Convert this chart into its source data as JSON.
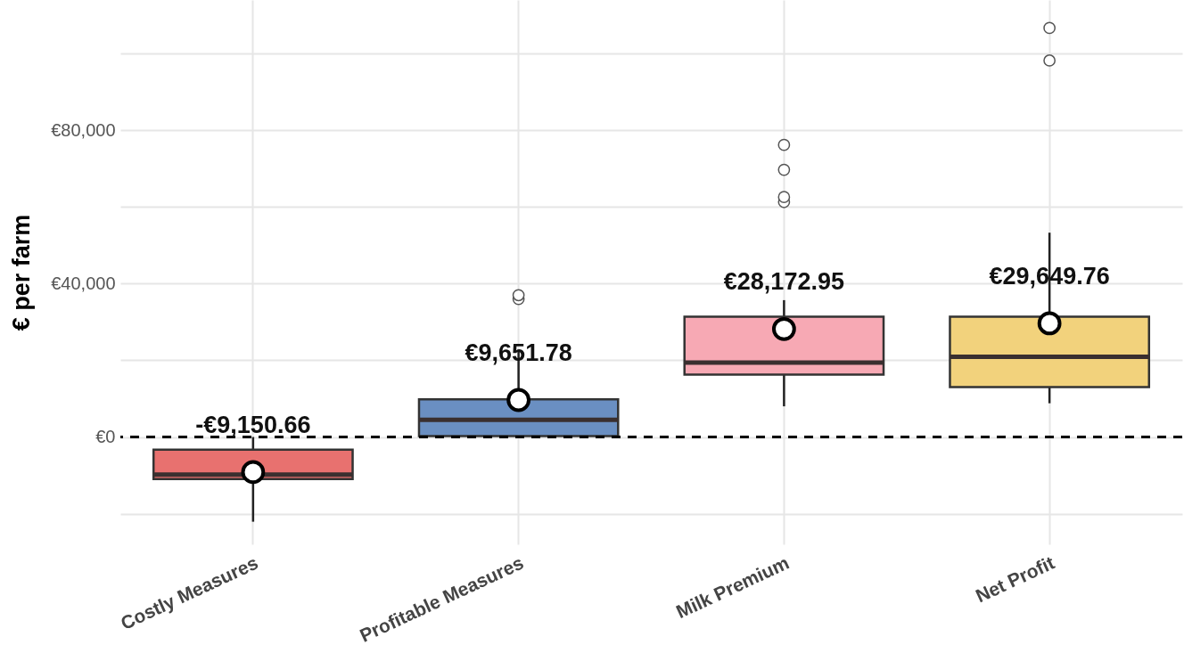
{
  "chart_data": {
    "type": "box",
    "ylabel": "€ per farm",
    "categories": [
      "Costly Measures",
      "Profitable Measures",
      "Milk Premium",
      "Net Profit"
    ],
    "colors": [
      "#e8716f",
      "#6a8fc2",
      "#f7a9b4",
      "#f2d27c"
    ],
    "boxes": [
      {
        "low": -22100,
        "q1": -11000,
        "median": -9800,
        "q3": -3300,
        "high": 0,
        "mean": -9150.66
      },
      {
        "low": 0,
        "q1": 250,
        "median": 4500,
        "q3": 9800,
        "high": 22400,
        "mean": 9651.78,
        "outliers": [
          36000,
          37000
        ]
      },
      {
        "low": 8000,
        "q1": 16300,
        "median": 19400,
        "q3": 31400,
        "high": 35700,
        "mean": 28172.95,
        "outliers": [
          61300,
          62600,
          69700,
          76200
        ]
      },
      {
        "low": 8800,
        "q1": 13000,
        "median": 20900,
        "q3": 31400,
        "high": 53300,
        "mean": 29649.76,
        "outliers": [
          98200,
          106700
        ]
      }
    ],
    "annotations": [
      {
        "text": "-€9,150.66",
        "x": "Costly Measures",
        "y": -9150.66
      },
      {
        "text": "€9,651.78",
        "x": "Profitable Measures",
        "y": 9651.78
      },
      {
        "text": "€28,172.95",
        "x": "Milk Premium",
        "y": 28172.95
      },
      {
        "text": "€29,649.76",
        "x": "Net Profit",
        "y": 29649.76
      }
    ],
    "ref_lines": [
      {
        "axis": "y",
        "value": 0,
        "color": "#000000",
        "line_style": "dashed"
      }
    ],
    "ylim": [
      -28000,
      114000
    ],
    "yticks": [
      {
        "value": -20000,
        "label": null
      },
      {
        "value": 0,
        "label": "€0"
      },
      {
        "value": 20000,
        "label": null
      },
      {
        "value": 40000,
        "label": "€40,000"
      },
      {
        "value": 60000,
        "label": null
      },
      {
        "value": 80000,
        "label": "€80,000"
      },
      {
        "value": 100000,
        "label": null
      }
    ],
    "grid": true
  }
}
